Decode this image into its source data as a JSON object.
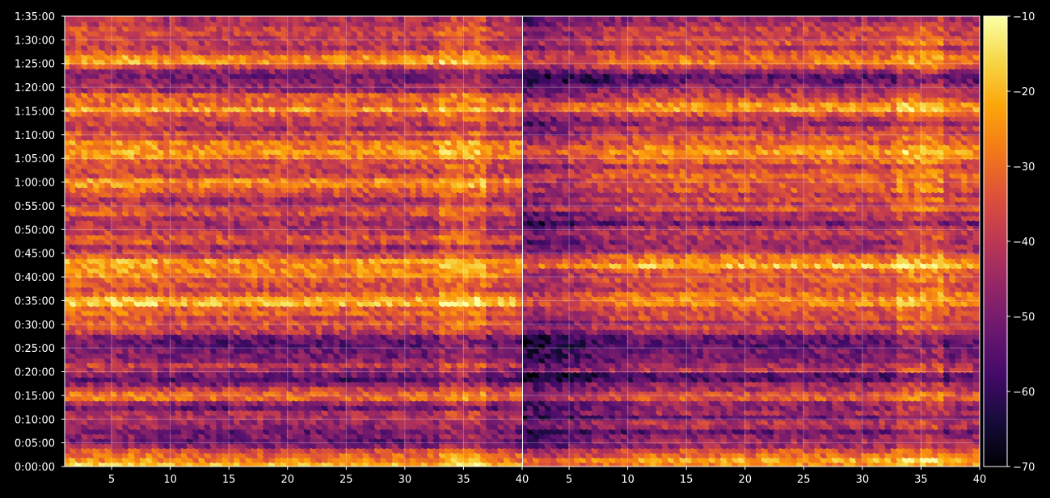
{
  "chart_data": {
    "type": "heatmap",
    "panels": [
      {
        "name": "",
        "xlim": [
          1,
          40
        ],
        "xticks": [
          5,
          10,
          15,
          20,
          25,
          30,
          35,
          40
        ]
      },
      {
        "name": "",
        "xlim": [
          1,
          40
        ],
        "xticks": [
          5,
          10,
          15,
          20,
          25,
          30,
          35,
          40
        ]
      }
    ],
    "ylim_seconds": [
      0,
      5700
    ],
    "y_tick_labels": [
      "0:00:00",
      "0:05:00",
      "0:10:00",
      "0:15:00",
      "0:20:00",
      "0:25:00",
      "0:30:00",
      "0:35:00",
      "0:40:00",
      "0:45:00",
      "0:50:00",
      "0:55:00",
      "1:00:00",
      "1:05:00",
      "1:10:00",
      "1:15:00",
      "1:20:00",
      "1:25:00",
      "1:30:00",
      "1:35:00"
    ],
    "colorbar": {
      "colormap": "inferno",
      "range": [
        -70,
        -10
      ],
      "ticks": [
        -10,
        -20,
        -30,
        -40,
        -50,
        -60,
        -70
      ],
      "tick_labels": [
        "−10",
        "−20",
        "−30",
        "−40",
        "−50",
        "−60",
        "−70"
      ]
    },
    "grid": true,
    "row_intensity_profile": {
      "y_minutes": [
        1,
        3,
        6,
        9,
        13,
        15,
        19,
        21,
        24,
        27,
        30,
        33,
        35,
        37,
        41,
        43,
        46,
        49,
        52,
        54,
        57,
        60,
        63,
        65,
        67,
        70,
        73,
        75,
        77,
        80,
        83,
        86,
        88,
        91,
        93
      ],
      "level_dB": [
        -22,
        -36,
        -52,
        -44,
        -50,
        -30,
        -58,
        -38,
        -55,
        -50,
        -38,
        -34,
        -22,
        -34,
        -30,
        -20,
        -44,
        -36,
        -48,
        -36,
        -40,
        -28,
        -40,
        -32,
        -24,
        -38,
        -44,
        -26,
        -28,
        -46,
        -52,
        -20,
        -42,
        -34,
        -44
      ]
    }
  }
}
